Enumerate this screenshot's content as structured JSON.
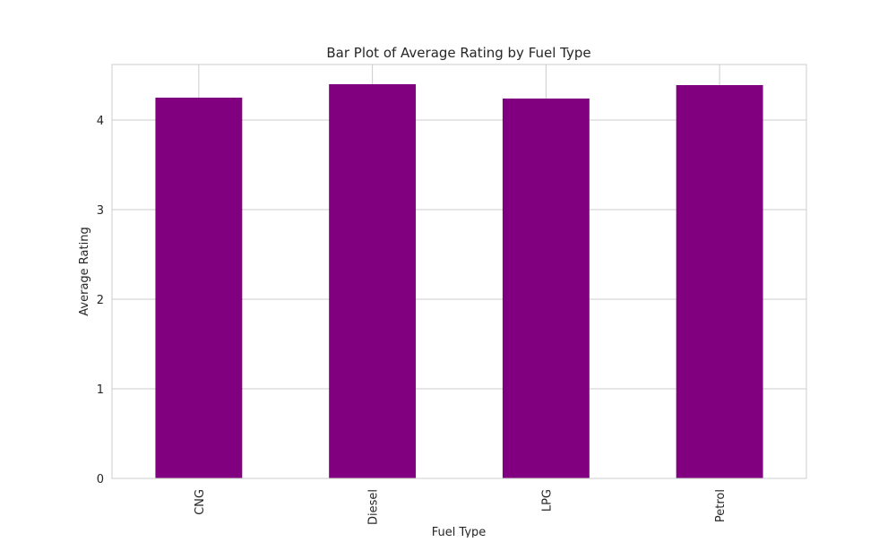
{
  "chart_data": {
    "type": "bar",
    "title": "Bar Plot of Average Rating by Fuel Type",
    "xlabel": "Fuel Type",
    "ylabel": "Average Rating",
    "categories": [
      "CNG",
      "Diesel",
      "LPG",
      "Petrol"
    ],
    "values": [
      4.25,
      4.4,
      4.24,
      4.39
    ],
    "ylim": [
      0,
      4.62
    ],
    "yticks": [
      "0",
      "1",
      "2",
      "3",
      "4"
    ],
    "grid": true,
    "bar_color": "#800080",
    "grid_color": "#cccccc"
  }
}
